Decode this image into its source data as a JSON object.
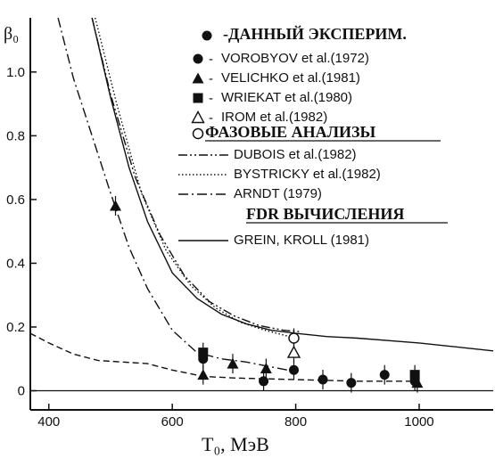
{
  "chart_data": {
    "type": "scatter",
    "title": "",
    "xlabel": "T₀, МэВ",
    "ylabel": "β₀",
    "xlim": [
      370,
      1120
    ],
    "ylim": [
      -0.06,
      1.17
    ],
    "x_ticks": [
      400,
      600,
      800,
      1000
    ],
    "y_ticks": [
      0,
      0.2,
      0.4,
      0.6,
      0.8,
      1.0
    ],
    "x_tick_labels": [
      "400",
      "600",
      "800",
      "1000"
    ],
    "y_tick_labels": [
      "0",
      "0.2",
      "0.4",
      "0.6",
      "0.8",
      "1.0"
    ],
    "grid": false,
    "legend_position": "top-right",
    "legend": {
      "head_exp": "-ДАННЫЙ ЭКСПЕРИМ.",
      "exp": [
        {
          "marker": "circle-filled",
          "text": "VOROBYOV et al.(1972)"
        },
        {
          "marker": "triangle-filled",
          "text": "VELICHKO et al.(1981)"
        },
        {
          "marker": "square-filled",
          "text": "WRIEKAT et al.(1980)"
        },
        {
          "marker": "triangle-open",
          "text": "IROM et al.(1982)"
        },
        {
          "marker": "circle-open",
          "text": "ФАЗОВЫЕ АНАЛИЗЫ"
        }
      ],
      "head_pa": "",
      "pa": [
        {
          "style": "dash-dot-dot",
          "text": "DUBOIS et al.(1982)"
        },
        {
          "style": "dotted",
          "text": "BYSTRICKY et al.(1982)"
        },
        {
          "style": "dash-dot",
          "text": "ARNDT (1979)"
        }
      ],
      "head_fdr": "FDR ВЫЧИСЛЕНИЯ",
      "fdr": [
        {
          "style": "solid",
          "text": "GREIN, KROLL (1981)"
        }
      ]
    },
    "series": [
      {
        "marker": "circle-filled",
        "points": [
          {
            "x": 650,
            "y": 0.1
          },
          {
            "x": 748,
            "y": 0.03
          },
          {
            "x": 797,
            "y": 0.065
          },
          {
            "x": 844,
            "y": 0.035
          },
          {
            "x": 890,
            "y": 0.025
          },
          {
            "x": 944,
            "y": 0.05
          },
          {
            "x": 993,
            "y": 0.03
          }
        ]
      },
      {
        "marker": "triangle-filled",
        "points": [
          {
            "x": 508,
            "y": 0.58
          },
          {
            "x": 650,
            "y": 0.05
          },
          {
            "x": 698,
            "y": 0.085
          },
          {
            "x": 752,
            "y": 0.07
          },
          {
            "x": 997,
            "y": 0.025
          }
        ]
      },
      {
        "marker": "square-filled",
        "points": [
          {
            "x": 650,
            "y": 0.12
          },
          {
            "x": 993,
            "y": 0.05
          }
        ]
      },
      {
        "marker": "triangle-open",
        "points": [
          {
            "x": 797,
            "y": 0.12
          }
        ]
      },
      {
        "marker": "circle-open",
        "points": [
          {
            "x": 797,
            "y": 0.165
          }
        ]
      }
    ],
    "curves": [
      {
        "style": "solid",
        "points": [
          [
            470,
            1.17
          ],
          [
            500,
            0.92
          ],
          [
            530,
            0.7
          ],
          [
            560,
            0.53
          ],
          [
            600,
            0.37
          ],
          [
            640,
            0.29
          ],
          [
            680,
            0.24
          ],
          [
            720,
            0.21
          ],
          [
            760,
            0.19
          ],
          [
            800,
            0.18
          ],
          [
            850,
            0.17
          ],
          [
            900,
            0.165
          ],
          [
            1000,
            0.15
          ],
          [
            1120,
            0.125
          ]
        ]
      },
      {
        "style": "dash-dot-dot",
        "points": [
          [
            470,
            1.17
          ],
          [
            500,
            0.93
          ],
          [
            540,
            0.67
          ],
          [
            580,
            0.49
          ],
          [
            620,
            0.36
          ],
          [
            660,
            0.28
          ],
          [
            700,
            0.235
          ],
          [
            740,
            0.205
          ],
          [
            780,
            0.19
          ],
          [
            810,
            0.185
          ]
        ]
      },
      {
        "style": "dotted",
        "points": [
          [
            475,
            1.17
          ],
          [
            510,
            0.9
          ],
          [
            550,
            0.62
          ],
          [
            590,
            0.44
          ],
          [
            630,
            0.33
          ],
          [
            670,
            0.26
          ],
          [
            710,
            0.215
          ],
          [
            750,
            0.19
          ],
          [
            790,
            0.17
          ],
          [
            805,
            0.165
          ]
        ]
      },
      {
        "style": "dash-dot",
        "points": [
          [
            415,
            1.17
          ],
          [
            440,
            0.98
          ],
          [
            470,
            0.8
          ],
          [
            500,
            0.62
          ],
          [
            530,
            0.45
          ],
          [
            560,
            0.32
          ],
          [
            600,
            0.19
          ],
          [
            640,
            0.12
          ],
          [
            680,
            0.1
          ],
          [
            720,
            0.09
          ],
          [
            760,
            0.075
          ],
          [
            800,
            0.06
          ]
        ]
      },
      {
        "style": "dashed",
        "points": [
          [
            370,
            0.18
          ],
          [
            400,
            0.15
          ],
          [
            440,
            0.115
          ],
          [
            480,
            0.095
          ],
          [
            520,
            0.09
          ],
          [
            560,
            0.085
          ],
          [
            600,
            0.065
          ],
          [
            650,
            0.045
          ],
          [
            700,
            0.04
          ],
          [
            800,
            0.035
          ],
          [
            900,
            0.03
          ],
          [
            1000,
            0.03
          ]
        ]
      }
    ]
  }
}
